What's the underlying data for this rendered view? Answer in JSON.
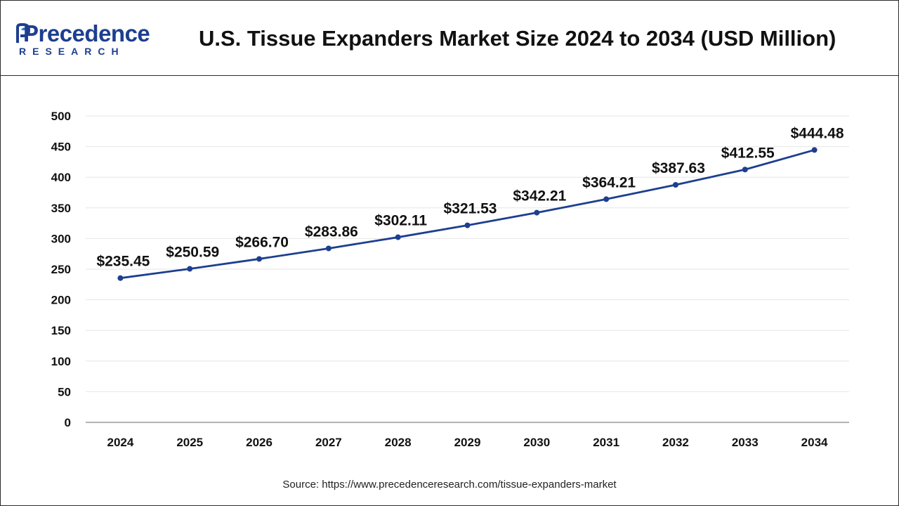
{
  "logo": {
    "word": "Precedence",
    "sub": "RESEARCH"
  },
  "title": "U.S. Tissue Expanders Market Size 2024 to 2034 (USD Million)",
  "source": "Source: https://www.precedenceresearch.com/tissue-expanders-market",
  "colors": {
    "line": "#1d3f8f",
    "grid": "#e6e6e6",
    "text": "#111111"
  },
  "chart_data": {
    "type": "line",
    "title": "U.S. Tissue Expanders Market Size 2024 to 2034 (USD Million)",
    "xlabel": "",
    "ylabel": "",
    "categories": [
      "2024",
      "2025",
      "2026",
      "2027",
      "2028",
      "2029",
      "2030",
      "2031",
      "2032",
      "2033",
      "2034"
    ],
    "series": [
      {
        "name": "Market Size (USD Million)",
        "values": [
          235.45,
          250.59,
          266.7,
          283.86,
          302.11,
          321.53,
          342.21,
          364.21,
          387.63,
          412.55,
          444.48
        ]
      }
    ],
    "data_labels": [
      "$235.45",
      "$250.59",
      "$266.70",
      "$283.86",
      "$302.11",
      "$321.53",
      "$342.21",
      "$364.21",
      "$387.63",
      "$412.55",
      "$444.48"
    ],
    "yticks": [
      0,
      50,
      100,
      150,
      200,
      250,
      300,
      350,
      400,
      450,
      500
    ],
    "ylim": [
      0,
      500
    ],
    "grid": true,
    "legend": "none"
  }
}
